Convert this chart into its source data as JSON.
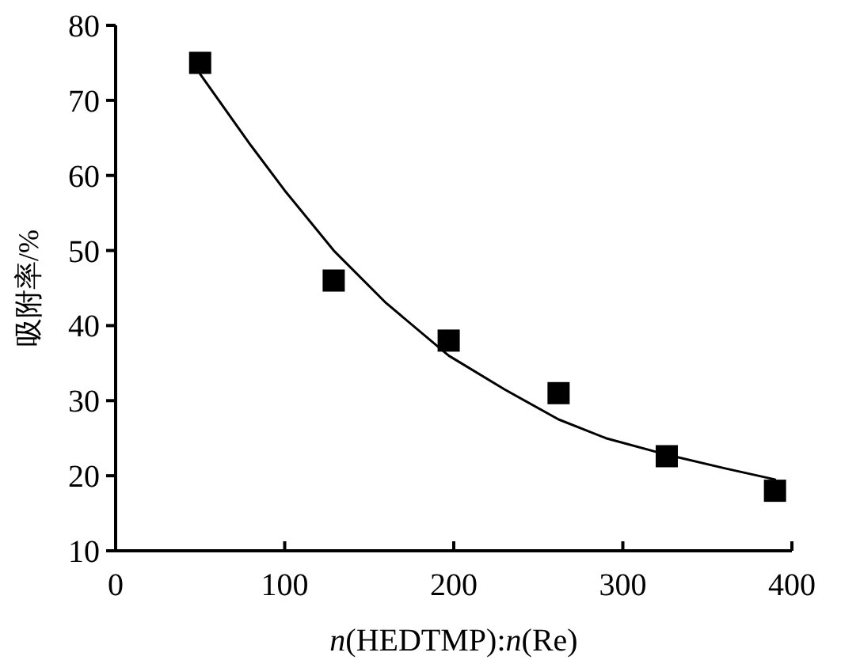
{
  "chart_data": {
    "type": "scatter",
    "xlabel": "*n*(HEDTMP):*n*(Re)",
    "ylabel": "吸附率/%",
    "xlim": [
      0,
      400
    ],
    "ylim": [
      10,
      80
    ],
    "xticks": [
      0,
      100,
      200,
      300,
      400
    ],
    "yticks": [
      10,
      20,
      30,
      40,
      50,
      60,
      70,
      80
    ],
    "grid": false,
    "series": [
      {
        "marker": "square",
        "color": "#000000",
        "x": [
          50,
          129,
          197,
          262,
          326,
          390
        ],
        "values": [
          75,
          46,
          38,
          31,
          22.6,
          18
        ]
      },
      {
        "type": "line",
        "marker": "none",
        "line_style": "solid",
        "color": "#000000",
        "x": [
          50,
          80,
          100,
          129,
          160,
          197,
          230,
          262,
          290,
          326,
          360,
          390
        ],
        "values": [
          73.5,
          64,
          58,
          50,
          43,
          36,
          31.5,
          27.5,
          25,
          22.8,
          21,
          19.5
        ]
      }
    ]
  }
}
